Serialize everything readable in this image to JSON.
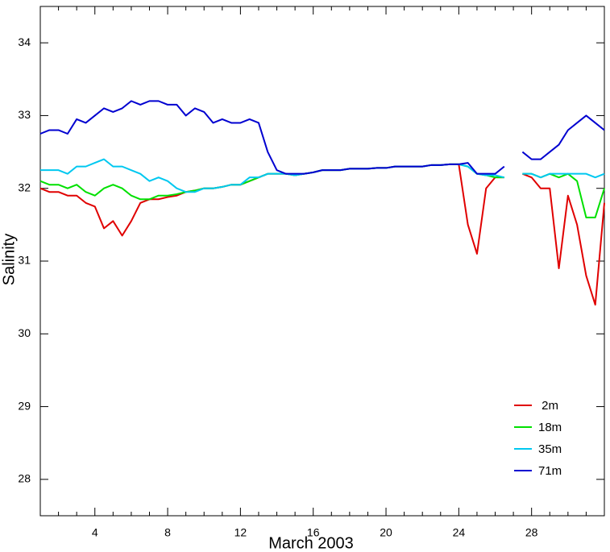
{
  "chart_data": {
    "type": "line",
    "xlabel": "March 2003",
    "ylabel": "Salinity",
    "x": [
      1,
      1.5,
      2,
      2.5,
      3,
      3.5,
      4,
      4.5,
      5,
      5.5,
      6,
      6.5,
      7,
      7.5,
      8,
      8.5,
      9,
      9.5,
      10,
      10.5,
      11,
      11.5,
      12,
      12.5,
      13,
      13.5,
      14,
      14.5,
      15,
      15.5,
      16,
      16.5,
      17,
      17.5,
      18,
      18.5,
      19,
      19.5,
      20,
      20.5,
      21,
      21.5,
      22,
      22.5,
      23,
      23.5,
      24,
      24.5,
      25,
      25.5,
      26,
      26.5,
      27,
      27.5,
      28,
      28.5,
      29,
      29.5,
      30,
      30.5,
      31,
      31.5,
      32
    ],
    "series": [
      {
        "name": " 2m",
        "color": "#e00000",
        "values": [
          32.0,
          31.95,
          31.95,
          31.9,
          31.9,
          31.8,
          31.75,
          31.45,
          31.55,
          31.35,
          31.55,
          31.8,
          31.85,
          31.85,
          31.88,
          31.9,
          31.95,
          31.97,
          32.0,
          32.0,
          32.02,
          32.05,
          32.05,
          32.1,
          32.15,
          32.2,
          32.2,
          32.2,
          32.18,
          32.2,
          32.22,
          32.25,
          32.25,
          32.25,
          32.27,
          32.27,
          32.27,
          32.28,
          32.28,
          32.3,
          32.3,
          32.3,
          32.3,
          32.32,
          32.32,
          32.33,
          32.33,
          31.5,
          31.1,
          32.0,
          32.15,
          32.15,
          null,
          32.2,
          32.15,
          32.0,
          32.0,
          30.9,
          31.9,
          31.5,
          30.8,
          30.4,
          31.8
        ]
      },
      {
        "name": "18m",
        "color": "#00e000",
        "values": [
          32.1,
          32.05,
          32.05,
          32.0,
          32.05,
          31.95,
          31.9,
          32.0,
          32.05,
          32.0,
          31.9,
          31.85,
          31.85,
          31.9,
          31.9,
          31.92,
          31.95,
          31.97,
          32.0,
          32.0,
          32.02,
          32.05,
          32.05,
          32.1,
          32.15,
          32.2,
          32.2,
          32.2,
          32.18,
          32.2,
          32.22,
          32.25,
          32.25,
          32.25,
          32.27,
          32.27,
          32.27,
          32.28,
          32.28,
          32.3,
          32.3,
          32.3,
          32.3,
          32.32,
          32.32,
          32.33,
          32.33,
          32.3,
          32.2,
          32.18,
          32.15,
          32.15,
          null,
          32.2,
          32.2,
          32.15,
          32.2,
          32.15,
          32.2,
          32.1,
          31.6,
          31.6,
          32.0
        ]
      },
      {
        "name": "35m",
        "color": "#00c8f0",
        "values": [
          32.25,
          32.25,
          32.25,
          32.2,
          32.3,
          32.3,
          32.35,
          32.4,
          32.3,
          32.3,
          32.25,
          32.2,
          32.1,
          32.15,
          32.1,
          32.0,
          31.95,
          31.95,
          32.0,
          32.0,
          32.02,
          32.05,
          32.05,
          32.15,
          32.15,
          32.2,
          32.2,
          32.2,
          32.18,
          32.2,
          32.22,
          32.25,
          32.25,
          32.25,
          32.27,
          32.27,
          32.27,
          32.28,
          32.28,
          32.3,
          32.3,
          32.3,
          32.3,
          32.32,
          32.32,
          32.33,
          32.33,
          32.3,
          32.2,
          32.18,
          32.18,
          32.15,
          null,
          32.2,
          32.2,
          32.15,
          32.2,
          32.2,
          32.2,
          32.2,
          32.2,
          32.15,
          32.2
        ]
      },
      {
        "name": "71m",
        "color": "#0000d0",
        "values": [
          32.75,
          32.8,
          32.8,
          32.75,
          32.95,
          32.9,
          33.0,
          33.1,
          33.05,
          33.1,
          33.2,
          33.15,
          33.2,
          33.2,
          33.15,
          33.15,
          33.0,
          33.1,
          33.05,
          32.9,
          32.95,
          32.9,
          32.9,
          32.95,
          32.9,
          32.5,
          32.25,
          32.2,
          32.2,
          32.2,
          32.22,
          32.25,
          32.25,
          32.25,
          32.27,
          32.27,
          32.27,
          32.28,
          32.28,
          32.3,
          32.3,
          32.3,
          32.3,
          32.32,
          32.32,
          32.33,
          32.33,
          32.35,
          32.2,
          32.2,
          32.2,
          32.3,
          null,
          32.5,
          32.4,
          32.4,
          32.5,
          32.6,
          32.8,
          32.9,
          33.0,
          32.9,
          32.8
        ]
      }
    ],
    "xlim": [
      1,
      32
    ],
    "xticks": [
      4,
      8,
      12,
      16,
      20,
      24,
      28
    ],
    "xminorticks": [
      2,
      3,
      5,
      6,
      7,
      9,
      10,
      11,
      13,
      14,
      15,
      17,
      18,
      19,
      21,
      22,
      23,
      25,
      26,
      27,
      29,
      30,
      31
    ],
    "ylim": [
      27.5,
      34.5
    ],
    "yticks": [
      28,
      29,
      30,
      31,
      32,
      33,
      34
    ],
    "legend": "lower right"
  }
}
